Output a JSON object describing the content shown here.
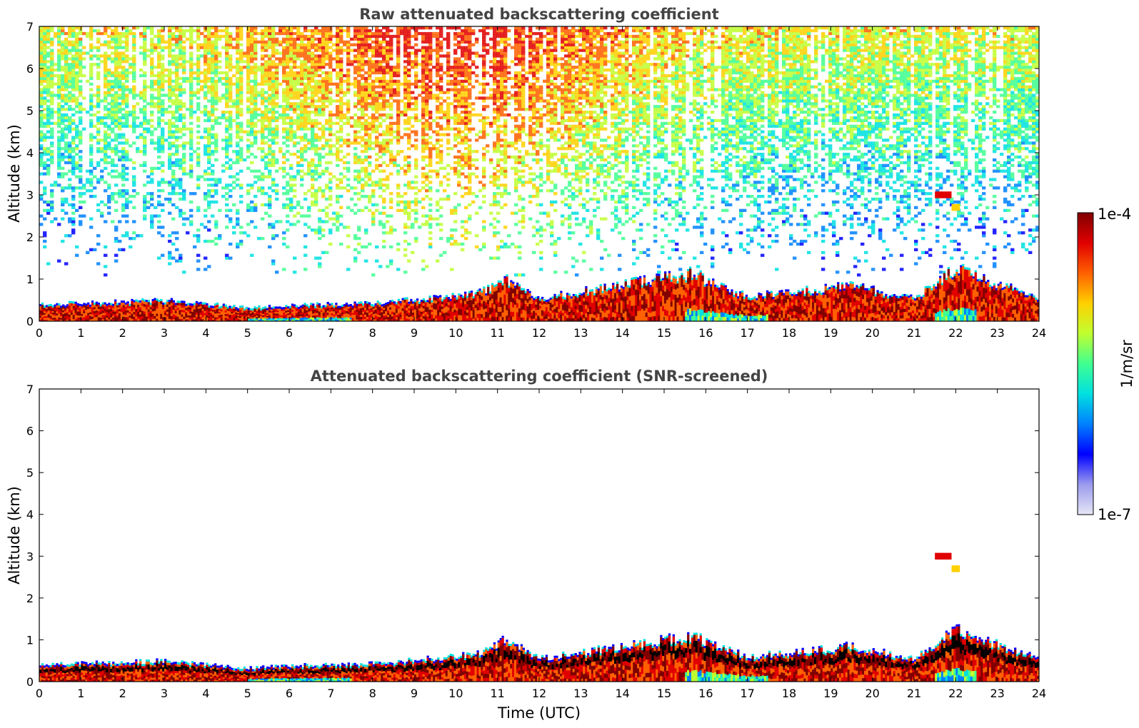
{
  "chart_data": [
    {
      "type": "heatmap",
      "title": "Raw attenuated backscattering coefficient",
      "xlabel": "",
      "ylabel": "Altitude (km)",
      "xlim": [
        0,
        24
      ],
      "ylim": [
        0,
        7
      ],
      "x_ticks": [
        "0",
        "1",
        "2",
        "3",
        "4",
        "5",
        "6",
        "7",
        "8",
        "9",
        "10",
        "11",
        "12",
        "13",
        "14",
        "15",
        "16",
        "17",
        "18",
        "19",
        "20",
        "21",
        "22",
        "23",
        "24"
      ],
      "y_ticks": [
        "0",
        "1",
        "2",
        "3",
        "4",
        "5",
        "6",
        "7"
      ],
      "boundary_layer_top_km": [
        {
          "t": 0,
          "h": 0.35
        },
        {
          "t": 3,
          "h": 0.45
        },
        {
          "t": 5,
          "h": 0.28
        },
        {
          "t": 6.5,
          "h": 0.35
        },
        {
          "t": 8,
          "h": 0.38
        },
        {
          "t": 10.5,
          "h": 0.6
        },
        {
          "t": 11.2,
          "h": 0.95
        },
        {
          "t": 12,
          "h": 0.5
        },
        {
          "t": 15.7,
          "h": 1.1
        },
        {
          "t": 16.3,
          "h": 0.8
        },
        {
          "t": 17,
          "h": 0.55
        },
        {
          "t": 19.5,
          "h": 0.8
        },
        {
          "t": 21,
          "h": 0.5
        },
        {
          "t": 22,
          "h": 1.2
        },
        {
          "t": 24,
          "h": 0.5
        }
      ],
      "upper_signal_note": "Noisy signal above ~1 km, strongest (yellow-red) near 6-7 km between 7 and 13 UTC",
      "elevated_layers": [
        {
          "t_start": 21.5,
          "t_end": 21.9,
          "h": 3.0
        },
        {
          "t_start": 21.9,
          "t_end": 22.1,
          "h": 2.7
        }
      ]
    },
    {
      "type": "heatmap",
      "title": "Attenuated backscattering coefficient (SNR-screened)",
      "xlabel": "Time (UTC)",
      "ylabel": "Altitude (km)",
      "xlim": [
        0,
        24
      ],
      "ylim": [
        0,
        7
      ],
      "x_ticks": [
        "0",
        "1",
        "2",
        "3",
        "4",
        "5",
        "6",
        "7",
        "8",
        "9",
        "10",
        "11",
        "12",
        "13",
        "14",
        "15",
        "16",
        "17",
        "18",
        "19",
        "20",
        "21",
        "22",
        "23",
        "24"
      ],
      "y_ticks": [
        "0",
        "1",
        "2",
        "3",
        "4",
        "5",
        "6",
        "7"
      ],
      "boundary_layer_top_km": [
        {
          "t": 0,
          "h": 0.35
        },
        {
          "t": 3,
          "h": 0.45
        },
        {
          "t": 5,
          "h": 0.28
        },
        {
          "t": 6.5,
          "h": 0.35
        },
        {
          "t": 8,
          "h": 0.38
        },
        {
          "t": 10.5,
          "h": 0.6
        },
        {
          "t": 11.2,
          "h": 0.95
        },
        {
          "t": 12,
          "h": 0.5
        },
        {
          "t": 15.7,
          "h": 1.05
        },
        {
          "t": 16.3,
          "h": 0.8
        },
        {
          "t": 17,
          "h": 0.55
        },
        {
          "t": 19.5,
          "h": 0.8
        },
        {
          "t": 21,
          "h": 0.5
        },
        {
          "t": 22,
          "h": 1.2
        },
        {
          "t": 24,
          "h": 0.5
        }
      ],
      "elevated_layers": [
        {
          "t_start": 21.5,
          "t_end": 21.9,
          "h": 3.0
        },
        {
          "t_start": 21.9,
          "t_end": 22.1,
          "h": 2.7
        }
      ]
    }
  ],
  "colorbar": {
    "label": "1/m/sr",
    "max_label": "1e-4",
    "min_label": "1e-7",
    "scale": "log",
    "colors": [
      "#e6e6f5",
      "#9b9bee",
      "#0000ff",
      "#0080ff",
      "#00e0e0",
      "#40ff90",
      "#c0ff30",
      "#ffd000",
      "#ff6000",
      "#e00000",
      "#800000"
    ]
  }
}
